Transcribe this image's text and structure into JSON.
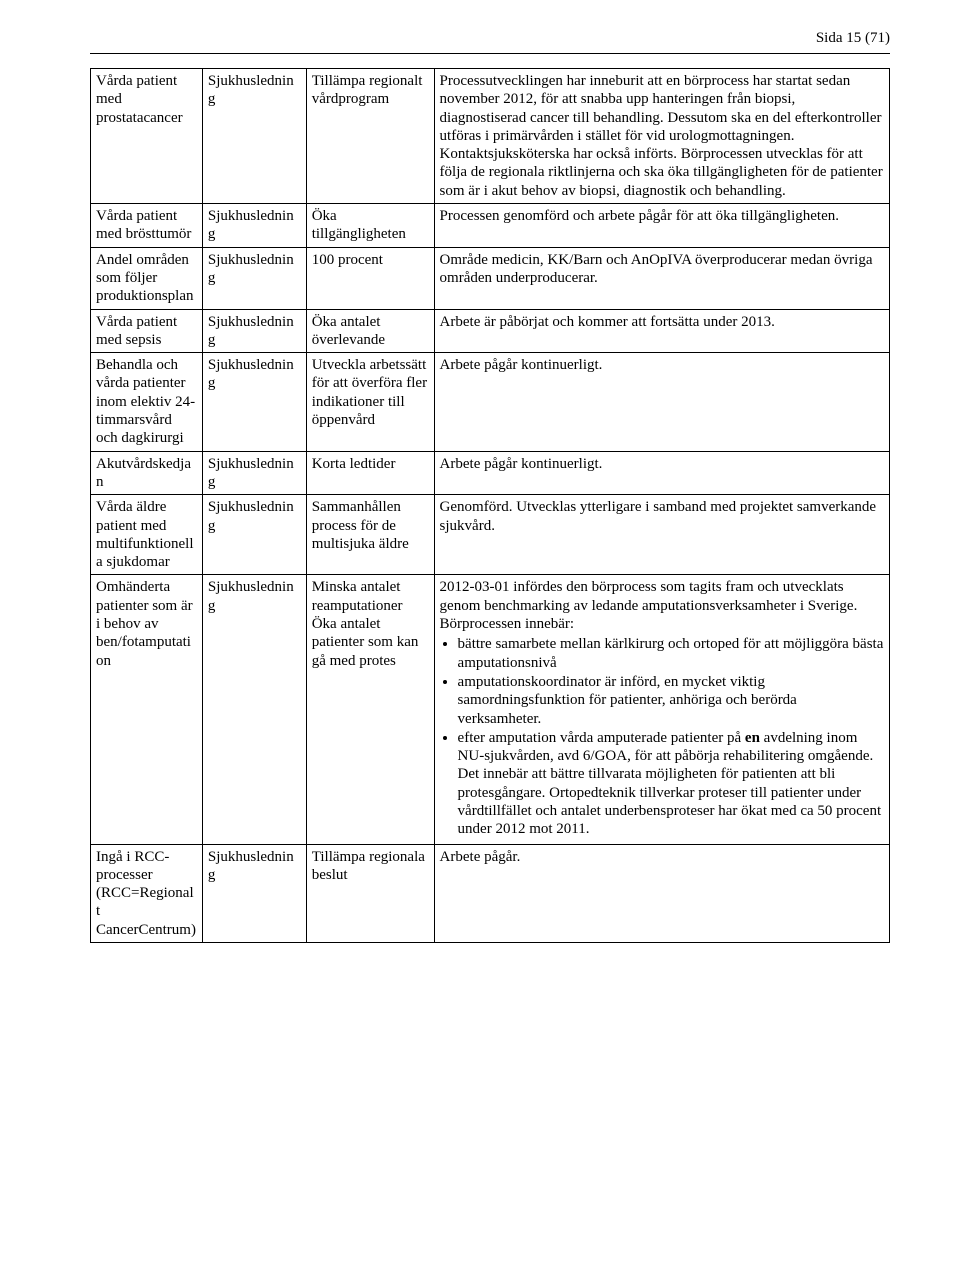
{
  "page_label": "Sida 15 (71)",
  "rows": [
    {
      "c1": "Vårda patient med prostatacancer",
      "c2": "Sjukhusledning",
      "c3": "Tillämpa regionalt vårdprogram",
      "c4": "Processutvecklingen har inneburit att en börprocess har startat sedan november 2012, för att snabba upp hanteringen från biopsi, diagnostiserad cancer till behandling. Dessutom ska en del efterkontroller utföras i primärvården i stället för vid urologmottagningen. Kontaktsjuksköterska har också införts. Börprocessen utvecklas för att följa de regionala riktlinjerna och ska öka tillgängligheten för de patienter som är i akut behov av biopsi, diagnostik och behandling."
    },
    {
      "c1": "Vårda patient med brösttumör",
      "c2": "Sjukhusledning",
      "c3": "Öka tillgängligheten",
      "c4": "Processen genomförd och arbete pågår för att öka tillgängligheten."
    },
    {
      "c1": "Andel områden som följer produktionsplan",
      "c2": "Sjukhusledning",
      "c3": "100 procent",
      "c4": "Område medicin, KK/Barn och AnOpIVA överproducerar medan övriga områden underproducerar."
    },
    {
      "c1": "Vårda patient med sepsis",
      "c2": "Sjukhusledning",
      "c3": "Öka antalet överlevande",
      "c4": "Arbete är påbörjat och kommer att fortsätta under 2013."
    },
    {
      "c1": "Behandla och vårda patienter inom elektiv 24-timmarsvård och dagkirurgi",
      "c2": "Sjukhusledning",
      "c3": "Utveckla arbetssätt för att överföra fler indikationer till öppenvård",
      "c4": "Arbete pågår kontinuerligt."
    },
    {
      "c1": "Akutvårdskedjan",
      "c2": "Sjukhusledning",
      "c3": "Korta ledtider",
      "c4": "Arbete pågår kontinuerligt."
    },
    {
      "c1": "Vårda äldre patient med multifunktionella sjukdomar",
      "c2": "Sjukhusledning",
      "c3": "Sammanhållen process för de multisjuka äldre",
      "c4": "Genomförd. Utvecklas ytterligare i samband med projektet samverkande sjukvård."
    },
    {
      "c1": "Omhänderta patienter som är i behov av ben/fotamputation",
      "c2": "Sjukhusledning",
      "c3": "Minska antalet reamputationer Öka antalet patienter som kan gå med protes",
      "c4_intro": "2012-03-01 infördes den börprocess som tagits fram och utvecklats genom benchmarking av ledande amputationsverksamheter i Sverige. Börprocessen innebär:",
      "c4_bullets": [
        "bättre samarbete mellan kärlkirurg och ortoped för att möjliggöra bästa amputationsnivå",
        "amputationskoordinator är införd, en mycket viktig samordningsfunktion för patienter, anhöriga och berörda verksamheter.",
        {
          "pre": "efter amputation vårda amputerade patienter på ",
          "bold": "en",
          "post": " avdelning inom NU-sjukvården, avd 6/GOA, för att påbörja rehabilitering omgående. Det innebär att bättre tillvarata möjligheten för patienten att bli protesgångare. Ortopedteknik tillverkar proteser till patienter under vårdtillfället och antalet underbensproteser har ökat med ca 50 procent under 2012 mot 2011."
        }
      ]
    },
    {
      "c1": "Ingå i RCC-processer (RCC=Regionalt CancerCentrum)",
      "c2": "Sjukhusledning",
      "c3": "Tillämpa regionala beslut",
      "c4": "Arbete pågår."
    }
  ]
}
